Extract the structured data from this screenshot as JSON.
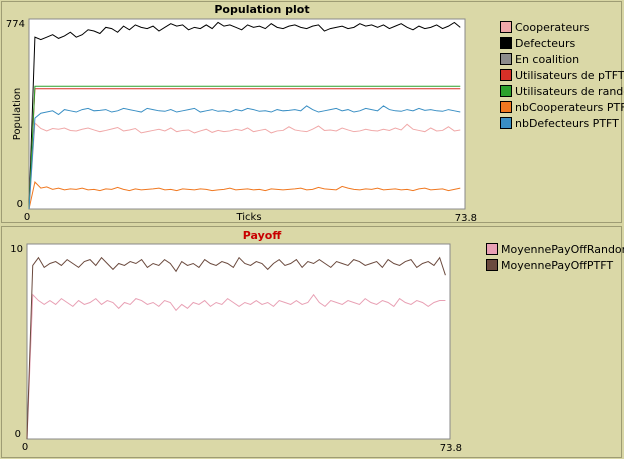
{
  "chart_data": [
    {
      "type": "line",
      "title": "Population plot",
      "xlabel": "Ticks",
      "ylabel": "Population",
      "xlim": [
        0,
        73.8
      ],
      "ylim": [
        0,
        774
      ],
      "x_tick_labels": [
        "0",
        "73.8"
      ],
      "y_tick_labels": [
        "774",
        "0"
      ],
      "legend_position": "right",
      "series": [
        {
          "name": "Cooperateurs",
          "color": "#f0a8a8",
          "values": [
            0,
            350,
            328,
            318,
            328,
            325,
            330,
            320,
            318,
            325,
            330,
            322,
            315,
            320,
            326,
            332,
            318,
            322,
            328,
            310,
            315,
            320,
            325,
            318,
            330,
            315,
            320,
            322,
            310,
            318,
            325,
            312,
            320,
            315,
            318,
            325,
            320,
            330,
            315,
            320,
            325,
            310,
            318,
            320,
            335,
            322,
            318,
            315,
            325,
            338,
            320,
            322,
            318,
            330,
            322,
            315,
            318,
            325,
            320,
            318,
            325,
            320,
            330,
            322,
            345,
            325,
            320,
            315,
            330,
            318,
            320,
            335,
            318,
            322
          ]
        },
        {
          "name": "Defecteurs",
          "color": "#000000",
          "values": [
            0,
            700,
            690,
            700,
            710,
            695,
            705,
            720,
            700,
            710,
            730,
            725,
            715,
            740,
            735,
            720,
            745,
            730,
            750,
            740,
            735,
            745,
            725,
            740,
            755,
            745,
            750,
            730,
            740,
            735,
            750,
            735,
            760,
            745,
            750,
            740,
            730,
            750,
            740,
            745,
            735,
            755,
            740,
            735,
            745,
            750,
            740,
            735,
            745,
            750,
            725,
            735,
            740,
            745,
            735,
            740,
            755,
            745,
            750,
            740,
            750,
            735,
            745,
            755,
            740,
            730,
            745,
            735,
            740,
            750,
            735,
            745,
            760,
            740
          ]
        },
        {
          "name": "En coalition",
          "color": "#8c8c8c",
          "values": [
            0,
            0,
            0,
            0,
            0,
            0,
            0,
            0,
            0,
            0,
            0,
            0,
            0,
            0,
            0,
            0,
            0,
            0,
            0,
            0,
            0,
            0,
            0,
            0,
            0,
            0,
            0,
            0,
            0,
            0,
            0,
            0,
            0,
            0,
            0,
            0,
            0,
            0,
            0,
            0,
            0,
            0,
            0,
            0,
            0,
            0,
            0,
            0,
            0,
            0,
            0,
            0,
            0,
            0,
            0,
            0,
            0,
            0,
            0,
            0,
            0,
            0,
            0,
            0,
            0,
            0,
            0,
            0,
            0,
            0,
            0,
            0,
            0,
            0
          ]
        },
        {
          "name": "Utilisateurs de pTFT",
          "color": "#d73027",
          "values": [
            0,
            490,
            490,
            490,
            490,
            490,
            490,
            490,
            490,
            490,
            490,
            490,
            490,
            490,
            490,
            490,
            490,
            490,
            490,
            490,
            490,
            490,
            490,
            490,
            490,
            490,
            490,
            490,
            490,
            490,
            490,
            490,
            490,
            490,
            490,
            490,
            490,
            490,
            490,
            490,
            490,
            490,
            490,
            490,
            490,
            490,
            490,
            490,
            490,
            490,
            490,
            490,
            490,
            490,
            490,
            490,
            490,
            490,
            490,
            490,
            490,
            490,
            490,
            490,
            490,
            490,
            490,
            490,
            490,
            490,
            490,
            490,
            490,
            490
          ]
        },
        {
          "name": "Utilisateurs de random",
          "color": "#2ca02c",
          "values": [
            0,
            500,
            500,
            500,
            500,
            500,
            500,
            500,
            500,
            500,
            500,
            500,
            500,
            500,
            500,
            500,
            500,
            500,
            500,
            500,
            500,
            500,
            500,
            500,
            500,
            500,
            500,
            500,
            500,
            500,
            500,
            500,
            500,
            500,
            500,
            500,
            500,
            500,
            500,
            500,
            500,
            500,
            500,
            500,
            500,
            500,
            500,
            500,
            500,
            500,
            500,
            500,
            500,
            500,
            500,
            500,
            500,
            500,
            500,
            500,
            500,
            500,
            500,
            500,
            500,
            500,
            500,
            500,
            500,
            500,
            500,
            500,
            500,
            500
          ]
        },
        {
          "name": "nbCooperateurs PTFT",
          "color": "#f07820",
          "values": [
            0,
            110,
            85,
            90,
            80,
            85,
            78,
            82,
            80,
            85,
            78,
            80,
            75,
            82,
            80,
            88,
            80,
            75,
            82,
            78,
            80,
            82,
            85,
            78,
            80,
            75,
            82,
            80,
            78,
            82,
            80,
            75,
            78,
            80,
            85,
            78,
            80,
            82,
            78,
            80,
            75,
            82,
            80,
            78,
            80,
            82,
            85,
            78,
            80,
            88,
            82,
            80,
            78,
            92,
            85,
            80,
            78,
            82,
            80,
            85,
            78,
            80,
            82,
            78,
            80,
            75,
            82,
            85,
            78,
            80,
            82,
            75,
            80,
            85
          ]
        },
        {
          "name": "nbDefecteurs PTFT",
          "color": "#3a8fc4",
          "values": [
            0,
            370,
            390,
            395,
            400,
            385,
            405,
            400,
            395,
            405,
            410,
            400,
            402,
            405,
            395,
            400,
            410,
            405,
            400,
            395,
            410,
            405,
            400,
            398,
            405,
            395,
            400,
            405,
            410,
            395,
            400,
            405,
            398,
            400,
            395,
            405,
            400,
            410,
            405,
            398,
            400,
            395,
            405,
            400,
            402,
            405,
            400,
            420,
            405,
            395,
            400,
            405,
            410,
            400,
            405,
            395,
            400,
            410,
            405,
            400,
            420,
            405,
            400,
            398,
            405,
            400,
            410,
            402,
            405,
            400,
            398,
            405,
            400,
            395
          ]
        }
      ]
    },
    {
      "type": "line",
      "title": "Payoff",
      "xlabel": "",
      "ylabel": "",
      "xlim": [
        0,
        73.8
      ],
      "ylim": [
        0,
        10
      ],
      "x_tick_labels": [
        "0",
        "73.8"
      ],
      "y_tick_labels": [
        "10",
        "0"
      ],
      "legend_position": "right",
      "series": [
        {
          "name": "MoyennePayOffRandom",
          "color": "#e8a0b4",
          "values": [
            0,
            7.4,
            7.1,
            6.9,
            7.1,
            6.9,
            7.2,
            7.0,
            6.8,
            7.1,
            6.9,
            7.0,
            7.2,
            6.9,
            7.1,
            7.0,
            6.7,
            7.0,
            6.9,
            7.2,
            7.1,
            6.9,
            7.0,
            6.8,
            7.1,
            7.0,
            6.6,
            6.9,
            6.7,
            7.0,
            6.9,
            7.1,
            6.8,
            7.0,
            6.9,
            7.2,
            7.0,
            6.8,
            7.0,
            6.9,
            7.1,
            6.9,
            7.0,
            6.8,
            7.1,
            7.0,
            6.9,
            7.1,
            6.9,
            7.0,
            7.4,
            7.0,
            6.8,
            7.1,
            7.0,
            6.9,
            7.1,
            7.0,
            6.9,
            7.2,
            7.0,
            6.9,
            7.1,
            7.0,
            6.8,
            7.2,
            7.0,
            6.9,
            7.1,
            7.0,
            6.8,
            7.0,
            7.1,
            7.1
          ]
        },
        {
          "name": "MoyennePayOffPTFT",
          "color": "#6b4a3e",
          "values": [
            0,
            8.9,
            9.3,
            8.8,
            9.0,
            9.1,
            8.9,
            9.2,
            9.0,
            8.8,
            9.1,
            9.2,
            8.9,
            9.3,
            9.0,
            8.7,
            9.0,
            8.9,
            9.1,
            9.0,
            9.2,
            8.8,
            9.0,
            8.9,
            9.2,
            9.0,
            8.6,
            9.1,
            8.9,
            9.0,
            8.8,
            9.2,
            9.0,
            8.9,
            9.1,
            9.0,
            8.8,
            9.3,
            9.0,
            8.9,
            9.1,
            9.0,
            8.7,
            9.0,
            9.2,
            8.9,
            9.0,
            9.2,
            8.8,
            9.1,
            9.0,
            9.2,
            9.0,
            8.8,
            9.1,
            9.0,
            8.9,
            9.2,
            9.1,
            8.9,
            9.0,
            9.1,
            8.8,
            9.2,
            9.0,
            8.9,
            9.1,
            9.2,
            8.8,
            9.0,
            9.1,
            8.9,
            9.3,
            8.4
          ]
        }
      ]
    }
  ]
}
